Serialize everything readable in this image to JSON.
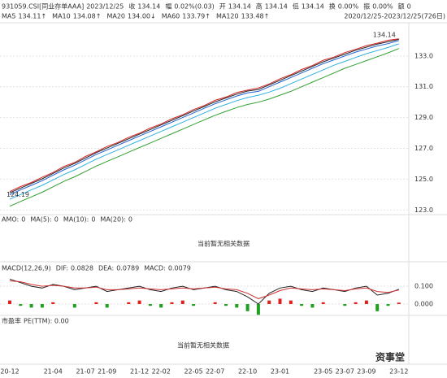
{
  "header": {
    "code": "931059.CSI[同业存单AAA]",
    "date": "2023/12/25",
    "quote": [
      {
        "label": "收",
        "value": "134.14",
        "color": "#e02020"
      },
      {
        "label": "幅",
        "value": "0.02%(0.03)",
        "color": "#e02020"
      },
      {
        "label": "开",
        "value": "134.14",
        "color": "#e02020"
      },
      {
        "label": "高",
        "value": "134.14",
        "color": "#e02020"
      },
      {
        "label": "低",
        "value": "134.14",
        "color": "#e02020"
      },
      {
        "label": "换",
        "value": "0.00%",
        "color": "#333333"
      },
      {
        "label": "振",
        "value": "0.00%",
        "color": "#333333"
      },
      {
        "label": "额",
        "value": "0",
        "color": "#333333"
      }
    ],
    "range": "2020/12/25-2023/12/25(726日)"
  },
  "chart_data": [
    {
      "type": "line",
      "readouts": [
        {
          "label": "MA5",
          "value": "134.11↑",
          "color": "#d62020"
        },
        {
          "label": "MA10",
          "value": "134.08↑",
          "color": "#e0a000"
        },
        {
          "label": "MA20",
          "value": "134.00↓",
          "color": "#2060d0"
        },
        {
          "label": "MA60",
          "value": "133.79↑",
          "color": "#30b0e0"
        },
        {
          "label": "MA120",
          "value": "133.48↑",
          "color": "#30a030"
        }
      ],
      "categories": [
        "20-12",
        null,
        null,
        null,
        "21-04",
        null,
        null,
        "21-07",
        null,
        "21-09",
        null,
        null,
        "21-12",
        null,
        "22-02",
        null,
        null,
        "22-05",
        null,
        "22-07",
        null,
        null,
        "22-10",
        null,
        null,
        "23-01",
        null,
        null,
        null,
        "23-05",
        null,
        "23-07",
        null,
        "23-09",
        null,
        null,
        "23-12"
      ],
      "series": [
        {
          "name": "MA120",
          "color": "#30a030",
          "values": [
            123.24,
            123.55,
            123.85,
            124.15,
            124.5,
            124.85,
            125.15,
            125.5,
            125.85,
            126.15,
            126.45,
            126.75,
            127.05,
            127.35,
            127.65,
            127.95,
            128.25,
            128.55,
            128.85,
            129.15,
            129.4,
            129.65,
            129.85,
            130.0,
            130.2,
            130.45,
            130.7,
            131.0,
            131.3,
            131.6,
            131.9,
            132.2,
            132.45,
            132.7,
            132.95,
            133.2,
            133.48
          ]
        },
        {
          "name": "MA60",
          "color": "#30b0e0",
          "values": [
            123.69,
            124.0,
            124.3,
            124.6,
            124.95,
            125.3,
            125.6,
            125.95,
            126.3,
            126.6,
            126.9,
            127.2,
            127.5,
            127.8,
            128.1,
            128.4,
            128.7,
            129.0,
            129.3,
            129.6,
            129.85,
            130.1,
            130.3,
            130.45,
            130.65,
            130.9,
            131.2,
            131.5,
            131.8,
            132.1,
            132.4,
            132.65,
            132.9,
            133.15,
            133.35,
            133.55,
            133.79
          ]
        },
        {
          "name": "MA20",
          "color": "#2060d0",
          "values": [
            123.99,
            124.3,
            124.6,
            124.9,
            125.25,
            125.6,
            125.9,
            126.25,
            126.6,
            126.9,
            127.2,
            127.5,
            127.8,
            128.1,
            128.4,
            128.7,
            129.0,
            129.3,
            129.6,
            129.9,
            130.15,
            130.4,
            130.6,
            130.7,
            131.0,
            131.3,
            131.6,
            131.9,
            132.2,
            132.5,
            132.75,
            133.0,
            133.25,
            133.45,
            133.65,
            133.8,
            134.0
          ]
        },
        {
          "name": "MA10",
          "color": "#222222",
          "values": [
            124.11,
            124.42,
            124.72,
            125.02,
            125.37,
            125.72,
            126.02,
            126.37,
            126.72,
            127.02,
            127.32,
            127.62,
            127.92,
            128.22,
            128.52,
            128.82,
            129.12,
            129.42,
            129.72,
            130.02,
            130.27,
            130.52,
            130.72,
            130.82,
            131.12,
            131.42,
            131.72,
            132.02,
            132.32,
            132.62,
            132.87,
            133.12,
            133.37,
            133.57,
            133.77,
            133.92,
            134.08
          ]
        },
        {
          "name": "MA5",
          "color": "#d62020",
          "values": [
            124.19,
            124.52,
            124.78,
            125.12,
            125.43,
            125.82,
            126.08,
            126.47,
            126.78,
            127.12,
            127.38,
            127.72,
            127.98,
            128.32,
            128.58,
            128.92,
            129.18,
            129.52,
            129.78,
            130.12,
            130.33,
            130.62,
            130.78,
            130.92,
            131.18,
            131.52,
            131.78,
            132.12,
            132.38,
            132.72,
            132.93,
            133.22,
            133.43,
            133.67,
            133.83,
            134.02,
            134.11
          ]
        }
      ],
      "high_label": 134.14,
      "low_label": 124.19,
      "ylim": [
        122.75,
        135.05
      ],
      "yticks": [
        {
          "value": 123,
          "label": "123.0"
        },
        {
          "value": 125,
          "label": "125.0"
        },
        {
          "value": 127,
          "label": "127.0"
        },
        {
          "value": 129,
          "label": "129.0"
        },
        {
          "value": 131,
          "label": "131.0"
        },
        {
          "value": 133,
          "label": "133.0"
        }
      ],
      "grid": true
    },
    {
      "type": "macd",
      "indicator": "MACD(12,26,9)",
      "readouts": [
        {
          "label": "DIF:",
          "value": "0.0828",
          "color": "#333333"
        },
        {
          "label": "DEA:",
          "value": "0.0789",
          "color": "#e0a000"
        },
        {
          "label": "MACD:",
          "value": "0.0079",
          "color": "#a030c0"
        }
      ],
      "series": [
        {
          "name": "DIF",
          "color": "#222222",
          "values": [
            0.14,
            0.12,
            0.1,
            0.09,
            0.11,
            0.1,
            0.08,
            0.09,
            0.1,
            0.07,
            0.08,
            0.09,
            0.1,
            0.08,
            0.07,
            0.09,
            0.1,
            0.08,
            0.09,
            0.1,
            0.08,
            0.07,
            0.04,
            0.0,
            0.06,
            0.09,
            0.1,
            0.08,
            0.07,
            0.09,
            0.08,
            0.07,
            0.09,
            0.1,
            0.05,
            0.06,
            0.0828
          ]
        },
        {
          "name": "DEA",
          "color": "#d03030",
          "values": [
            0.13,
            0.125,
            0.11,
            0.1,
            0.105,
            0.1,
            0.09,
            0.09,
            0.095,
            0.08,
            0.08,
            0.085,
            0.09,
            0.085,
            0.08,
            0.085,
            0.09,
            0.085,
            0.09,
            0.095,
            0.085,
            0.08,
            0.06,
            0.03,
            0.05,
            0.075,
            0.09,
            0.085,
            0.08,
            0.085,
            0.08,
            0.075,
            0.085,
            0.09,
            0.07,
            0.065,
            0.0789
          ]
        }
      ],
      "bars": {
        "name": "MACD",
        "up_color": "#e02020",
        "down_color": "#20a020",
        "values": [
          0.02,
          -0.01,
          -0.02,
          -0.02,
          0.01,
          0.0,
          -0.02,
          0.0,
          0.01,
          -0.02,
          0.0,
          0.01,
          0.02,
          -0.01,
          -0.02,
          0.01,
          0.02,
          -0.01,
          0.0,
          0.01,
          -0.01,
          -0.02,
          -0.04,
          -0.06,
          0.02,
          0.03,
          0.02,
          -0.01,
          -0.02,
          0.01,
          0.0,
          -0.01,
          0.01,
          0.02,
          -0.04,
          -0.01,
          0.0079
        ]
      },
      "ylim": [
        -0.05,
        0.164
      ],
      "yticks": [
        {
          "value": 0,
          "label": "0.000"
        },
        {
          "value": 0.1,
          "label": "0.100"
        }
      ],
      "grid": true
    }
  ],
  "amo_panel": {
    "readouts": [
      {
        "label": "AMO:",
        "value": "0",
        "color": "#333333"
      },
      {
        "label": "MA(5):",
        "value": "0",
        "color": "#333333"
      },
      {
        "label": "MA(10):",
        "value": "0",
        "color": "#e02020"
      },
      {
        "label": "MA(20):",
        "value": "0",
        "color": "#2060d0"
      }
    ],
    "message": "当前暂无相关数据"
  },
  "pe_panel": {
    "readouts": [
      {
        "label": "市盈率",
        "value": "PE(TTM): 0.00",
        "color": "#e02020"
      }
    ],
    "message": "当前暂无相关数据"
  },
  "watermark": "资事堂"
}
